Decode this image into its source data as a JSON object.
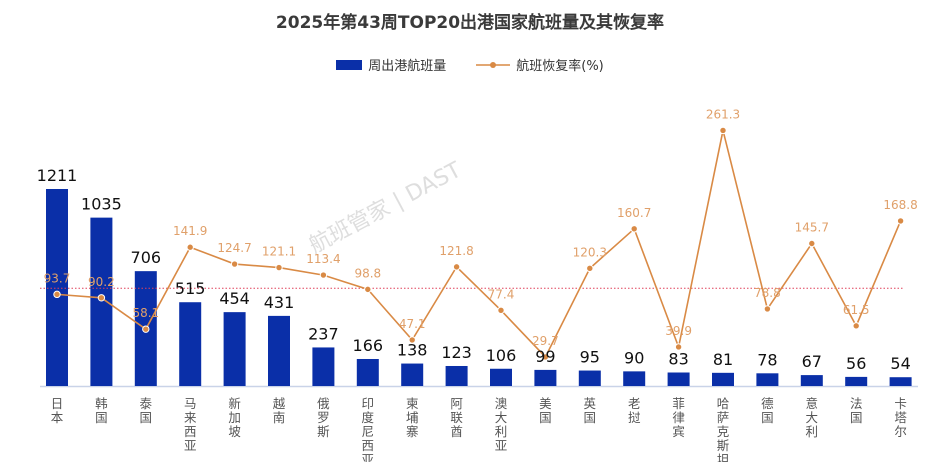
{
  "chart_data": {
    "type": "bar",
    "title": "2025年第43周TOP20出港国家航班量及其恢复率",
    "categories": [
      "日本",
      "韩国",
      "泰国",
      "马来西亚",
      "新加坡",
      "越南",
      "俄罗斯",
      "印度尼西亚",
      "柬埔寨",
      "阿联酋",
      "澳大利亚",
      "美国",
      "英国",
      "老挝",
      "菲律宾",
      "哈萨克斯坦",
      "德国",
      "意大利",
      "法国",
      "卡塔尔"
    ],
    "series": [
      {
        "name": "周出港航班量",
        "type": "bar",
        "color": "#0a2fa8",
        "values": [
          1211,
          1035,
          706,
          515,
          454,
          431,
          237,
          166,
          138,
          123,
          106,
          99,
          95,
          90,
          83,
          81,
          78,
          67,
          56,
          54
        ]
      },
      {
        "name": "航班恢复率(%)",
        "type": "line",
        "color": "#d98a45",
        "values": [
          93.7,
          90.2,
          58.1,
          141.9,
          124.7,
          121.1,
          113.4,
          98.8,
          47.1,
          121.8,
          77.4,
          29.7,
          120.3,
          160.7,
          39.9,
          261.3,
          78.8,
          145.7,
          61.5,
          168.8
        ]
      }
    ],
    "reference_line": {
      "value": 100,
      "color": "#e0405a",
      "style": "dotted"
    },
    "grid": false,
    "legend_position": "top"
  },
  "watermark": "航班管家 | DAST"
}
